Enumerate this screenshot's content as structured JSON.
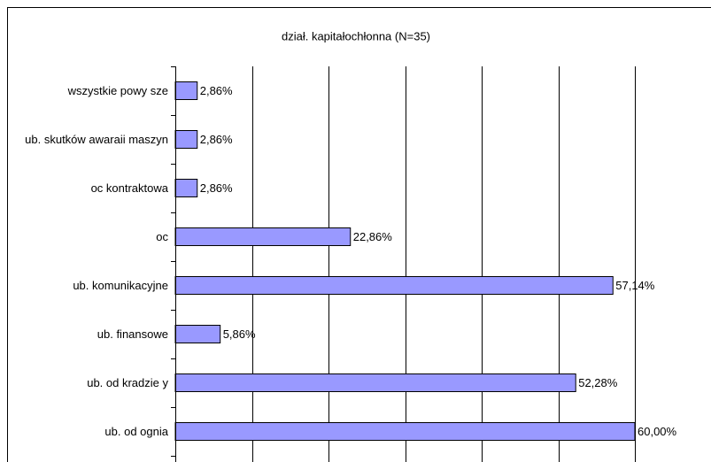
{
  "chart_data": {
    "type": "bar",
    "orientation": "horizontal",
    "title": "dział. kapitałochłonna (N=35)",
    "categories": [
      "wszystkie powy sze",
      "ub. skutków awaraii maszyn",
      "oc kontraktowa",
      "oc",
      "ub. komunikacyjne",
      "ub. finansowe",
      "ub. od kradzie y",
      "ub. od ognia"
    ],
    "values": [
      2.86,
      2.86,
      2.86,
      22.86,
      57.14,
      5.86,
      52.28,
      60.0
    ],
    "value_labels": [
      "2,86%",
      "2,86%",
      "2,86%",
      "22,86%",
      "57,14%",
      "5,86%",
      "52,28%",
      "60,00%"
    ],
    "color": "#9999ff",
    "xlim": [
      0,
      70
    ],
    "xticks": [
      0,
      10,
      20,
      30,
      40,
      50,
      60,
      70
    ],
    "grid": true
  }
}
